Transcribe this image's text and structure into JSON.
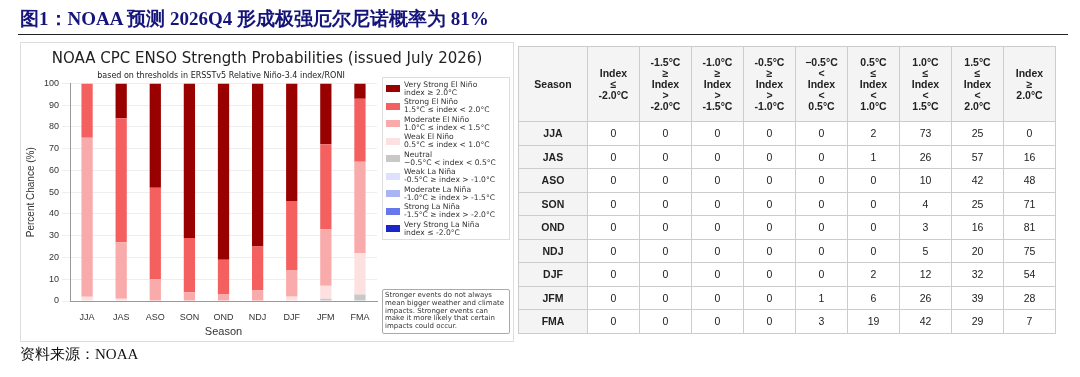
{
  "chart_data": [
    {
      "type": "bar",
      "title": "图1：NOAA 预测 2026Q4 形成极强厄尔尼诺概率为 81%",
      "subtitle": "NOAA CPC ENSO Strength Probabilities (issued July 2026)",
      "xlabel": "Season",
      "ylabel": "Percent Chance (%)",
      "categories": [
        "JJA",
        "JAS",
        "ASO",
        "SON",
        "OND",
        "NDJ",
        "DJF",
        "JFM",
        "FMA"
      ],
      "stacked": true,
      "ylim": [
        0,
        100
      ],
      "yticks": [
        0,
        10,
        20,
        30,
        40,
        50,
        60,
        70,
        80,
        90,
        100
      ],
      "grid": "y",
      "legend": "right",
      "series": [
        {
          "name": "Very Strong La Niña\nindex ≤ -2.0°C",
          "color": "#1a26cc",
          "values": [
            0,
            0,
            0,
            0,
            0,
            0,
            0,
            0,
            0
          ]
        },
        {
          "name": "Strong La Niña\n-1.5°C ≥ index > -2.0°C",
          "color": "#6677ee",
          "values": [
            0,
            0,
            0,
            0,
            0,
            0,
            0,
            0,
            0
          ]
        },
        {
          "name": "Moderate La Niña\n-1.0°C ≥ index > -1.5°C",
          "color": "#a9b4f5",
          "values": [
            0,
            0,
            0,
            0,
            0,
            0,
            0,
            0,
            0
          ]
        },
        {
          "name": "Weak La Niña\n-0.5°C ≥ index > -1.0°C",
          "color": "#dde0ff",
          "values": [
            0,
            0,
            0,
            0,
            0,
            0,
            0,
            0,
            0
          ]
        },
        {
          "name": "Neutral\n−0.5°C < index < 0.5°C",
          "color": "#c8c8c8",
          "values": [
            0,
            0,
            0,
            0,
            0,
            0,
            0,
            1,
            3
          ]
        },
        {
          "name": "Weak El Niño\n0.5°C ≤ index < 1.0°C",
          "color": "#fde0e0",
          "values": [
            2,
            1,
            0,
            0,
            0,
            0,
            2,
            6,
            19
          ]
        },
        {
          "name": "Moderate El Niño\n1.0°C ≤ index < 1.5°C",
          "color": "#f9aaaa",
          "values": [
            73,
            26,
            10,
            4,
            3,
            5,
            12,
            26,
            42
          ]
        },
        {
          "name": "Strong El Niño\n1.5°C ≤ index < 2.0°C",
          "color": "#f46060",
          "values": [
            25,
            57,
            42,
            25,
            16,
            20,
            32,
            39,
            29
          ]
        },
        {
          "name": "Very Strong El Niño\nindex ≥ 2.0°C",
          "color": "#990000",
          "values": [
            0,
            16,
            48,
            71,
            81,
            75,
            54,
            28,
            7
          ]
        }
      ],
      "annotations": [
        "based on thresholds in ERSSTv5 Relative Niño-3.4 index/RONI",
        "Stronger events do not always mean bigger weather and climate impacts. Stronger events can make it more likely that certain impacts could occur.",
        "资料来源：NOAA"
      ]
    },
    {
      "type": "heatmap",
      "ylabel": "Season",
      "data_labels": true,
      "categories": [
        "Index\n≤\n-2.0°C",
        "-1.5°C\n≥\nIndex\n>\n-2.0°C",
        "-1.0°C\n≥\nIndex\n>\n-1.5°C",
        "-0.5°C\n≥\nIndex\n>\n-1.0°C",
        "−0.5°C\n<\nIndex\n<\n0.5°C",
        "0.5°C\n≤\nIndex\n<\n1.0°C",
        "1.0°C\n≤\nIndex\n<\n1.5°C",
        "1.5°C\n≤\nIndex\n<\n2.0°C",
        "Index\n≥\n2.0°C"
      ],
      "y_categories": [
        "JJA",
        "JAS",
        "ASO",
        "SON",
        "OND",
        "NDJ",
        "DJF",
        "JFM",
        "FMA"
      ],
      "cells": [
        [
          0,
          0,
          0,
          0,
          0,
          2,
          73,
          25,
          0
        ],
        [
          0,
          0,
          0,
          0,
          0,
          1,
          26,
          57,
          16
        ],
        [
          0,
          0,
          0,
          0,
          0,
          0,
          10,
          42,
          48
        ],
        [
          0,
          0,
          0,
          0,
          0,
          0,
          4,
          25,
          71
        ],
        [
          0,
          0,
          0,
          0,
          0,
          0,
          3,
          16,
          81
        ],
        [
          0,
          0,
          0,
          0,
          0,
          0,
          5,
          20,
          75
        ],
        [
          0,
          0,
          0,
          0,
          0,
          2,
          12,
          32,
          54
        ],
        [
          0,
          0,
          0,
          0,
          1,
          6,
          26,
          39,
          28
        ],
        [
          0,
          0,
          0,
          0,
          3,
          19,
          42,
          29,
          7
        ]
      ]
    }
  ]
}
